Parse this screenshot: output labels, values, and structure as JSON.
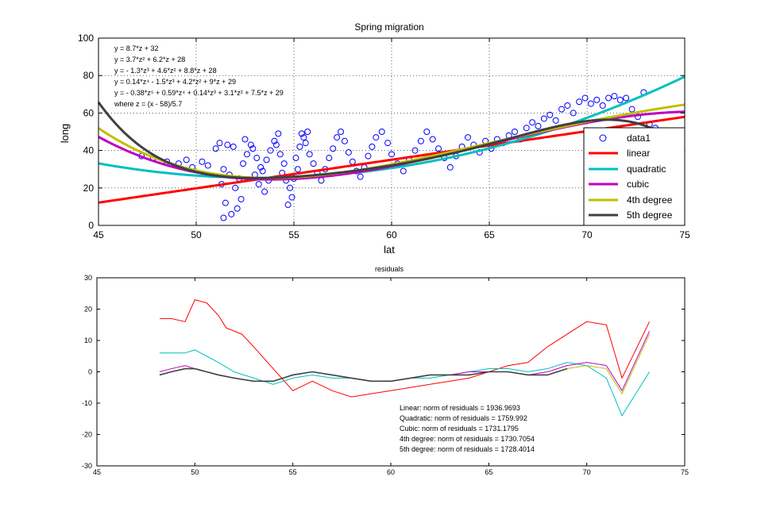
{
  "figure": {
    "top_title": "Spring migration",
    "bottom_title": "residuals"
  },
  "chart_data": [
    {
      "type": "scatter",
      "title": "Spring migration",
      "xlabel": "lat",
      "ylabel": "long",
      "xlim": [
        45,
        75
      ],
      "ylim": [
        0,
        100
      ],
      "xticks": [
        "45",
        "50",
        "55",
        "60",
        "65",
        "70",
        "75"
      ],
      "yticks": [
        "0",
        "20",
        "40",
        "60",
        "80",
        "100"
      ],
      "grid": "dotted",
      "legend_placement": "bottom-right",
      "legend": [
        "data1",
        "linear",
        "quadratic",
        "cubic",
        "4th degree",
        "5th degree"
      ],
      "series_colors": {
        "data1": "#0000ff",
        "linear": "#ff0000",
        "quadratic": "#00bfbf",
        "cubic": "#bf00bf",
        "4th degree": "#bfbf00",
        "5th degree": "#404040"
      },
      "equations": [
        "y = 8.7*z + 32",
        "y = 3.7*z² + 6.2*z + 28",
        "y = - 1.3*z³ + 4.6*z² + 8.8*z + 28",
        "y = 0.14*z⁴ - 1.5*z³ + 4.2*z² + 9*z + 29",
        "y = - 0.38*z⁵ + 0.59*z⁴ + 0.14*z³ + 3.1*z² + 7.5*z + 29",
        "where z = (x - 58)/5.7"
      ],
      "fits": {
        "z_center": 58,
        "z_scale": 5.7,
        "linear": [
          8.7,
          32
        ],
        "quadratic": [
          3.7,
          6.2,
          28
        ],
        "cubic": [
          -1.3,
          4.6,
          8.8,
          28
        ],
        "4th degree": [
          0.14,
          -1.5,
          4.2,
          9,
          29
        ],
        "5th degree": [
          -0.38,
          0.59,
          0.14,
          3.1,
          7.5,
          29
        ]
      },
      "scatter_points": [
        [
          47.2,
          37
        ],
        [
          47.8,
          36
        ],
        [
          48.5,
          34
        ],
        [
          49.1,
          33
        ],
        [
          49.5,
          35
        ],
        [
          49.8,
          31
        ],
        [
          50.3,
          34
        ],
        [
          50.6,
          32
        ],
        [
          51.0,
          41
        ],
        [
          51.2,
          44
        ],
        [
          51.6,
          43
        ],
        [
          51.9,
          42
        ],
        [
          51.4,
          30
        ],
        [
          51.7,
          27
        ],
        [
          51.3,
          22
        ],
        [
          51.5,
          12
        ],
        [
          51.4,
          4
        ],
        [
          51.8,
          6
        ],
        [
          52.1,
          9
        ],
        [
          52.3,
          14
        ],
        [
          52.0,
          20
        ],
        [
          52.2,
          25
        ],
        [
          52.4,
          33
        ],
        [
          52.6,
          38
        ],
        [
          52.8,
          43
        ],
        [
          52.5,
          46
        ],
        [
          52.9,
          41
        ],
        [
          53.1,
          36
        ],
        [
          53.3,
          31
        ],
        [
          53.0,
          27
        ],
        [
          53.2,
          22
        ],
        [
          53.5,
          18
        ],
        [
          53.7,
          24
        ],
        [
          53.4,
          29
        ],
        [
          53.6,
          35
        ],
        [
          53.8,
          40
        ],
        [
          54.0,
          45
        ],
        [
          54.2,
          49
        ],
        [
          54.1,
          43
        ],
        [
          54.3,
          38
        ],
        [
          54.5,
          33
        ],
        [
          54.4,
          28
        ],
        [
          54.6,
          24
        ],
        [
          54.8,
          20
        ],
        [
          54.9,
          15
        ],
        [
          54.7,
          11
        ],
        [
          55.0,
          25
        ],
        [
          55.2,
          30
        ],
        [
          55.1,
          36
        ],
        [
          55.3,
          42
        ],
        [
          55.5,
          47
        ],
        [
          55.7,
          50
        ],
        [
          55.4,
          49
        ],
        [
          55.6,
          44
        ],
        [
          55.8,
          38
        ],
        [
          56.0,
          33
        ],
        [
          56.2,
          28
        ],
        [
          56.4,
          24
        ],
        [
          56.6,
          30
        ],
        [
          56.8,
          36
        ],
        [
          57.0,
          41
        ],
        [
          57.2,
          47
        ],
        [
          57.4,
          50
        ],
        [
          57.6,
          45
        ],
        [
          57.8,
          39
        ],
        [
          58.0,
          34
        ],
        [
          58.2,
          29
        ],
        [
          58.4,
          26
        ],
        [
          58.6,
          31
        ],
        [
          58.8,
          37
        ],
        [
          59.0,
          42
        ],
        [
          59.2,
          47
        ],
        [
          59.5,
          50
        ],
        [
          59.8,
          44
        ],
        [
          60.0,
          38
        ],
        [
          60.3,
          33
        ],
        [
          60.6,
          29
        ],
        [
          60.9,
          35
        ],
        [
          61.2,
          40
        ],
        [
          61.5,
          45
        ],
        [
          61.8,
          50
        ],
        [
          62.1,
          46
        ],
        [
          62.4,
          41
        ],
        [
          62.7,
          36
        ],
        [
          63.0,
          31
        ],
        [
          63.3,
          37
        ],
        [
          63.6,
          42
        ],
        [
          63.9,
          47
        ],
        [
          64.2,
          43
        ],
        [
          64.5,
          39
        ],
        [
          64.8,
          45
        ],
        [
          65.1,
          41
        ],
        [
          65.4,
          46
        ],
        [
          65.7,
          44
        ],
        [
          66.0,
          48
        ],
        [
          66.3,
          50
        ],
        [
          66.6,
          46
        ],
        [
          66.9,
          52
        ],
        [
          67.2,
          55
        ],
        [
          67.5,
          53
        ],
        [
          67.8,
          57
        ],
        [
          68.1,
          59
        ],
        [
          68.4,
          56
        ],
        [
          68.7,
          62
        ],
        [
          69.0,
          64
        ],
        [
          69.3,
          60
        ],
        [
          69.6,
          66
        ],
        [
          69.9,
          68
        ],
        [
          70.2,
          65
        ],
        [
          70.5,
          67
        ],
        [
          70.8,
          64
        ],
        [
          71.1,
          68
        ],
        [
          71.4,
          69
        ],
        [
          71.7,
          67
        ],
        [
          72.0,
          68
        ],
        [
          72.3,
          62
        ],
        [
          72.6,
          58
        ],
        [
          72.9,
          71
        ],
        [
          73.2,
          54
        ],
        [
          73.5,
          52
        ]
      ]
    },
    {
      "type": "line",
      "title": "residuals",
      "xlim": [
        45,
        75
      ],
      "ylim": [
        -30,
        30
      ],
      "xticks": [
        "45",
        "50",
        "55",
        "60",
        "65",
        "70",
        "75"
      ],
      "yticks": [
        "-30",
        "-20",
        "-10",
        "0",
        "10",
        "20",
        "30"
      ],
      "grid": "off",
      "series": [
        {
          "name": "Linear",
          "color": "#ff0000",
          "values": [
            [
              48.2,
              17
            ],
            [
              48.8,
              17
            ],
            [
              49.5,
              16
            ],
            [
              50.0,
              23
            ],
            [
              50.6,
              22
            ],
            [
              51.2,
              18
            ],
            [
              51.6,
              14
            ],
            [
              52.4,
              12
            ],
            [
              53.0,
              8
            ],
            [
              54.0,
              1
            ],
            [
              55.0,
              -6
            ],
            [
              56.0,
              -3
            ],
            [
              57.0,
              -6
            ],
            [
              58.0,
              -8
            ],
            [
              59.0,
              -7
            ],
            [
              60.0,
              -6
            ],
            [
              61.0,
              -5
            ],
            [
              62.0,
              -4
            ],
            [
              63.0,
              -3
            ],
            [
              64.0,
              -2
            ],
            [
              65.0,
              0
            ],
            [
              66.0,
              2
            ],
            [
              67.0,
              3
            ],
            [
              68.0,
              8
            ],
            [
              69.0,
              12
            ],
            [
              70.0,
              16
            ],
            [
              71.0,
              15
            ],
            [
              71.8,
              -2
            ],
            [
              73.2,
              16
            ]
          ]
        },
        {
          "name": "Quadratic",
          "color": "#00bfbf",
          "values": [
            [
              48.2,
              6
            ],
            [
              48.8,
              6
            ],
            [
              49.5,
              6
            ],
            [
              50.0,
              7
            ],
            [
              50.6,
              5
            ],
            [
              51.2,
              3
            ],
            [
              52.0,
              0
            ],
            [
              53.0,
              -2
            ],
            [
              54.0,
              -4
            ],
            [
              55.0,
              -2
            ],
            [
              56.0,
              -1
            ],
            [
              57.0,
              -2
            ],
            [
              58.0,
              -2
            ],
            [
              59.0,
              -3
            ],
            [
              60.0,
              -3
            ],
            [
              61.0,
              -2
            ],
            [
              62.0,
              -2
            ],
            [
              63.0,
              -1
            ],
            [
              64.0,
              0
            ],
            [
              65.0,
              1
            ],
            [
              66.0,
              1
            ],
            [
              67.0,
              0
            ],
            [
              68.0,
              1
            ],
            [
              69.0,
              3
            ],
            [
              70.0,
              2
            ],
            [
              71.0,
              -2
            ],
            [
              71.8,
              -14
            ],
            [
              73.2,
              0
            ]
          ]
        },
        {
          "name": "Cubic",
          "color": "#bf00bf",
          "values": [
            [
              48.2,
              0
            ],
            [
              48.8,
              1
            ],
            [
              49.5,
              2
            ],
            [
              50.0,
              1
            ],
            [
              50.6,
              0
            ],
            [
              51.2,
              -1
            ],
            [
              52.0,
              -2
            ],
            [
              53.0,
              -3
            ],
            [
              54.0,
              -3
            ],
            [
              55.0,
              -1
            ],
            [
              56.0,
              0
            ],
            [
              57.0,
              -1
            ],
            [
              58.0,
              -2
            ],
            [
              59.0,
              -3
            ],
            [
              60.0,
              -3
            ],
            [
              61.0,
              -2
            ],
            [
              62.0,
              -1
            ],
            [
              63.0,
              -1
            ],
            [
              64.0,
              0
            ],
            [
              65.0,
              0
            ],
            [
              66.0,
              0
            ],
            [
              67.0,
              -1
            ],
            [
              68.0,
              0
            ],
            [
              69.0,
              2
            ],
            [
              70.0,
              3
            ],
            [
              71.0,
              2
            ],
            [
              71.8,
              -6
            ],
            [
              73.2,
              13
            ]
          ]
        },
        {
          "name": "4th degree",
          "color": "#bfbf00",
          "values": [
            [
              48.2,
              -1
            ],
            [
              48.8,
              0
            ],
            [
              49.5,
              1
            ],
            [
              50.0,
              1
            ],
            [
              50.6,
              0
            ],
            [
              51.2,
              -1
            ],
            [
              52.0,
              -2
            ],
            [
              53.0,
              -3
            ],
            [
              54.0,
              -3
            ],
            [
              55.0,
              -1
            ],
            [
              56.0,
              0
            ],
            [
              57.0,
              -1
            ],
            [
              58.0,
              -2
            ],
            [
              59.0,
              -3
            ],
            [
              60.0,
              -3
            ],
            [
              61.0,
              -2
            ],
            [
              62.0,
              -1
            ],
            [
              63.0,
              -1
            ],
            [
              64.0,
              -1
            ],
            [
              65.0,
              0
            ],
            [
              66.0,
              0
            ],
            [
              67.0,
              -1
            ],
            [
              68.0,
              -1
            ],
            [
              69.0,
              1
            ],
            [
              70.0,
              2
            ],
            [
              71.0,
              1
            ],
            [
              71.8,
              -7
            ],
            [
              73.2,
              12
            ]
          ]
        },
        {
          "name": "5th degree",
          "color": "#404040",
          "values": [
            [
              48.2,
              -1
            ],
            [
              48.8,
              0
            ],
            [
              49.5,
              1
            ],
            [
              50.0,
              1
            ],
            [
              50.6,
              0
            ],
            [
              51.2,
              -1
            ],
            [
              52.0,
              -2
            ],
            [
              53.0,
              -3
            ],
            [
              54.0,
              -3
            ],
            [
              55.0,
              -1
            ],
            [
              56.0,
              0
            ],
            [
              57.0,
              -1
            ],
            [
              58.0,
              -2
            ],
            [
              59.0,
              -3
            ],
            [
              60.0,
              -3
            ],
            [
              61.0,
              -2
            ],
            [
              62.0,
              -1
            ],
            [
              63.0,
              -1
            ],
            [
              64.0,
              -1
            ],
            [
              65.0,
              0
            ],
            [
              66.0,
              0
            ],
            [
              67.0,
              -1
            ],
            [
              68.0,
              -1
            ],
            [
              69.0,
              1
            ]
          ]
        }
      ],
      "annotations": [
        "Linear: norm of residuals = 1936.9693",
        "Quadratic: norm of residuals = 1759.992",
        "Cubic: norm of residuals = 1731.1795",
        "4th degree: norm of residuals = 1730.7054",
        "5th degree: norm of residuals = 1728.4014"
      ]
    }
  ]
}
